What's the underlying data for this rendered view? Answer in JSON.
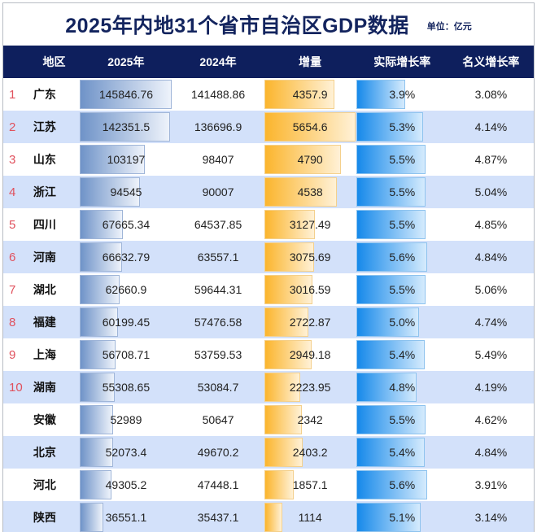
{
  "title": "2025年内地31个省市自治区GDP数据",
  "unit": "单位：亿元",
  "headers": [
    "地区",
    "2025年",
    "2024年",
    "增量",
    "实际增长率",
    "名义增长率"
  ],
  "colors": {
    "header_bg": "#0e1f5d",
    "alt_row": "#d3e1fa",
    "rank": "#e0515d",
    "bar_2025": "#6f93c8",
    "bar_increase": "#fbb52d",
    "bar_real_growth": "#1689ea"
  },
  "rows": [
    {
      "rank": "1",
      "region": "广东",
      "gdp2025": "145846.76",
      "gdp2024": "141488.86",
      "increase": "4357.9",
      "real": "3.9%",
      "nominal": "3.08%"
    },
    {
      "rank": "2",
      "region": "江苏",
      "gdp2025": "142351.5",
      "gdp2024": "136696.9",
      "increase": "5654.6",
      "real": "5.3%",
      "nominal": "4.14%"
    },
    {
      "rank": "3",
      "region": "山东",
      "gdp2025": "103197",
      "gdp2024": "98407",
      "increase": "4790",
      "real": "5.5%",
      "nominal": "4.87%"
    },
    {
      "rank": "4",
      "region": "浙江",
      "gdp2025": "94545",
      "gdp2024": "90007",
      "increase": "4538",
      "real": "5.5%",
      "nominal": "5.04%"
    },
    {
      "rank": "5",
      "region": "四川",
      "gdp2025": "67665.34",
      "gdp2024": "64537.85",
      "increase": "3127.49",
      "real": "5.5%",
      "nominal": "4.85%"
    },
    {
      "rank": "6",
      "region": "河南",
      "gdp2025": "66632.79",
      "gdp2024": "63557.1",
      "increase": "3075.69",
      "real": "5.6%",
      "nominal": "4.84%"
    },
    {
      "rank": "7",
      "region": "湖北",
      "gdp2025": "62660.9",
      "gdp2024": "59644.31",
      "increase": "3016.59",
      "real": "5.5%",
      "nominal": "5.06%"
    },
    {
      "rank": "8",
      "region": "福建",
      "gdp2025": "60199.45",
      "gdp2024": "57476.58",
      "increase": "2722.87",
      "real": "5.0%",
      "nominal": "4.74%"
    },
    {
      "rank": "9",
      "region": "上海",
      "gdp2025": "56708.71",
      "gdp2024": "53759.53",
      "increase": "2949.18",
      "real": "5.4%",
      "nominal": "5.49%"
    },
    {
      "rank": "10",
      "region": "湖南",
      "gdp2025": "55308.65",
      "gdp2024": "53084.7",
      "increase": "2223.95",
      "real": "4.8%",
      "nominal": "4.19%"
    },
    {
      "rank": "",
      "region": "安徽",
      "gdp2025": "52989",
      "gdp2024": "50647",
      "increase": "2342",
      "real": "5.5%",
      "nominal": "4.62%"
    },
    {
      "rank": "",
      "region": "北京",
      "gdp2025": "52073.4",
      "gdp2024": "49670.2",
      "increase": "2403.2",
      "real": "5.4%",
      "nominal": "4.84%"
    },
    {
      "rank": "",
      "region": "河北",
      "gdp2025": "49305.2",
      "gdp2024": "47448.1",
      "increase": "1857.1",
      "real": "5.6%",
      "nominal": "3.91%"
    },
    {
      "rank": "",
      "region": "陕西",
      "gdp2025": "36551.1",
      "gdp2024": "35437.1",
      "increase": "1114",
      "real": "5.1%",
      "nominal": "3.14%"
    }
  ]
}
